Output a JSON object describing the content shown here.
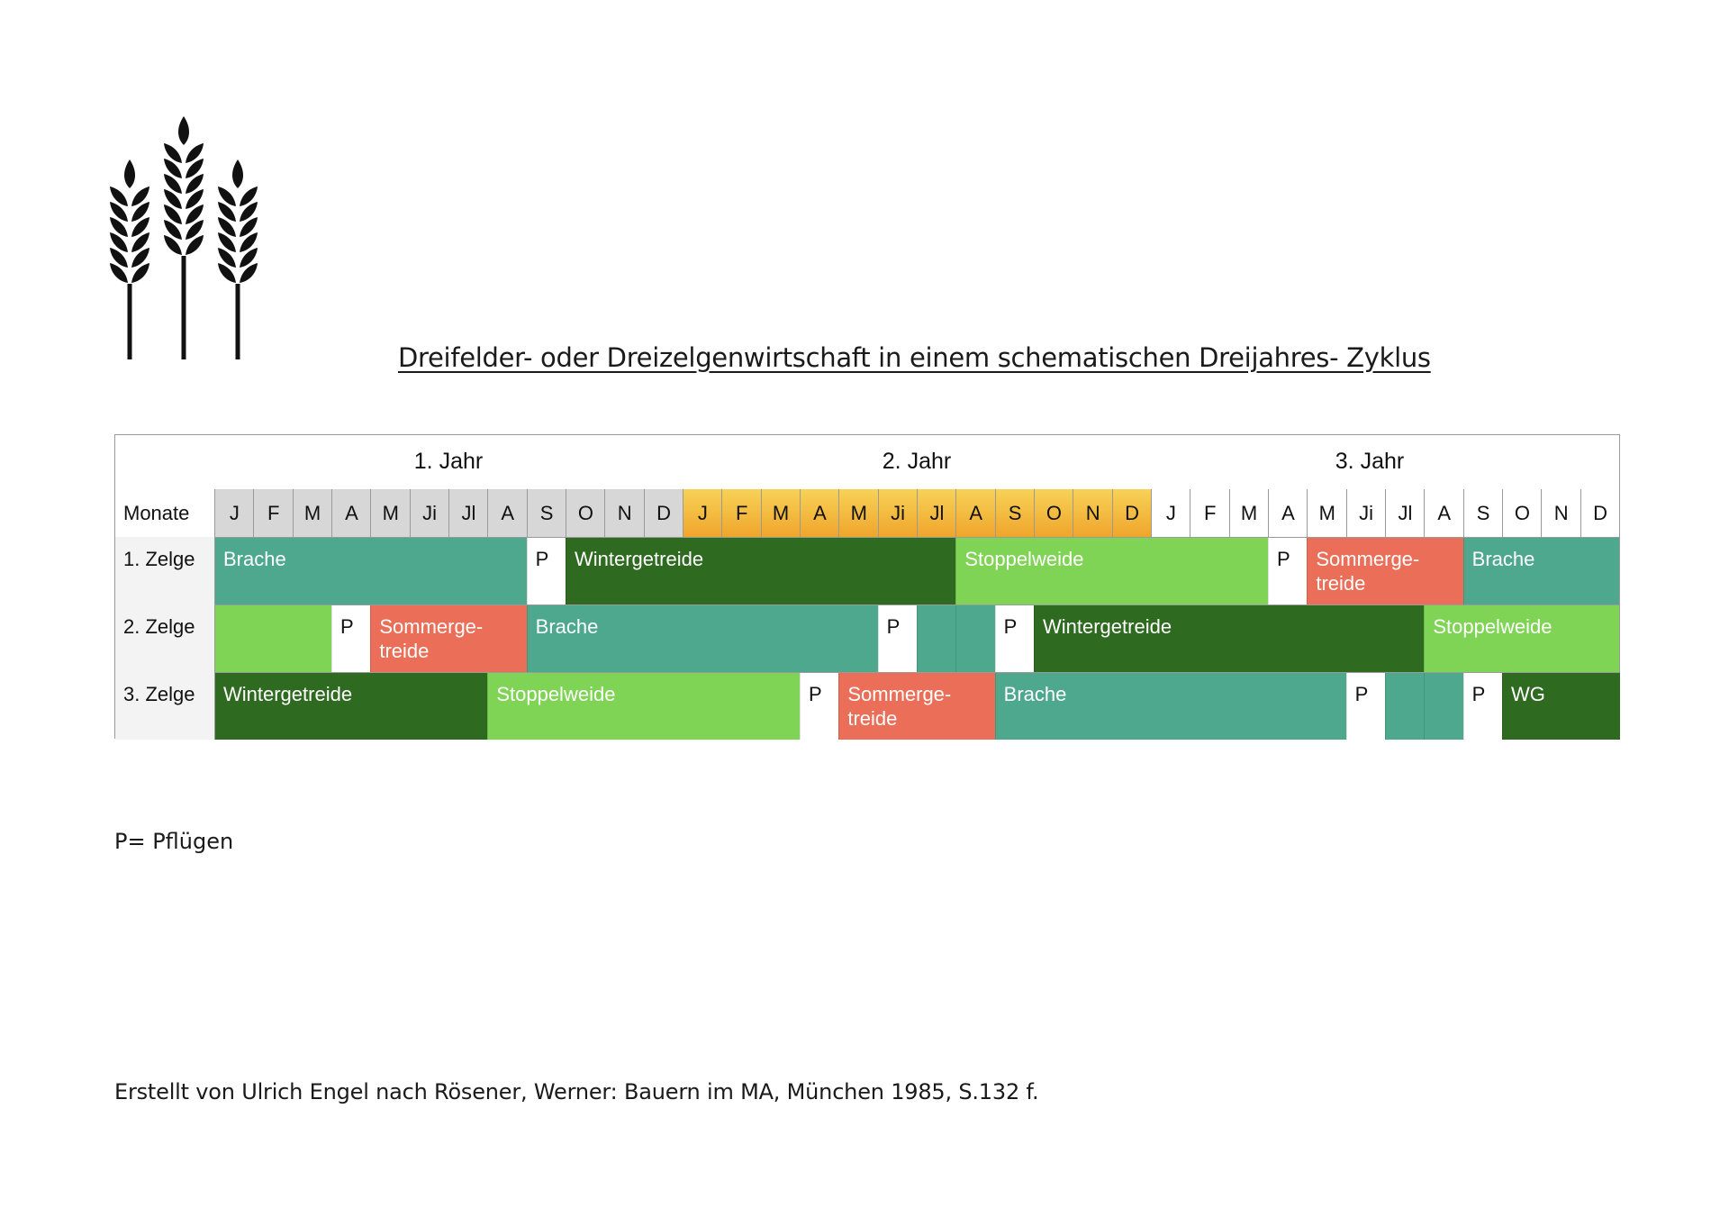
{
  "title": "Dreifelder- oder Dreizelgenwirtschaft in einem schematischen Dreijahres- Zyklus",
  "logo": {
    "icon": "wheat-icon",
    "color": "#111111"
  },
  "years": [
    "1. Jahr",
    "2. Jahr",
    "3. Jahr"
  ],
  "months_header": "Monate",
  "months": [
    "J",
    "F",
    "M",
    "A",
    "M",
    "Ji",
    "Jl",
    "A",
    "S",
    "O",
    "N",
    "D"
  ],
  "month_colors": {
    "year1": "#d7d7d7",
    "year2_top": "#f7d257",
    "year2_bottom": "#f0a52c",
    "year3": "#ffffff"
  },
  "colors": {
    "Brache": "#4ea88e",
    "Wintergetreide": "#2e6b20",
    "Stoppelweide": "#80d455",
    "Sommergetreide": "#eb6e58",
    "Pflügen": "#ffffff"
  },
  "rows": [
    {
      "label": "1. Zelge",
      "segments": [
        {
          "text": "Brache",
          "type": "Brache",
          "start": 0,
          "span": 8
        },
        {
          "text": "P",
          "type": "Pflügen",
          "start": 8,
          "span": 1
        },
        {
          "text": "Wintergetreide",
          "type": "Wintergetreide",
          "start": 9,
          "span": 10
        },
        {
          "text": "Stoppelweide",
          "type": "Stoppelweide",
          "start": 19,
          "span": 8
        },
        {
          "text": "P",
          "type": "Pflügen",
          "start": 27,
          "span": 1
        },
        {
          "text": "Sommerge-\ntreide",
          "type": "Sommergetreide",
          "start": 28,
          "span": 4
        },
        {
          "text": "Brache",
          "type": "Brache",
          "start": 32,
          "span": 4
        }
      ]
    },
    {
      "label": "2. Zelge",
      "segments": [
        {
          "text": "",
          "type": "Stoppelweide",
          "start": 0,
          "span": 3
        },
        {
          "text": "P",
          "type": "Pflügen",
          "start": 3,
          "span": 1
        },
        {
          "text": "Sommerge-\ntreide",
          "type": "Sommergetreide",
          "start": 4,
          "span": 4
        },
        {
          "text": "Brache",
          "type": "Brache",
          "start": 8,
          "span": 9
        },
        {
          "text": "P",
          "type": "Pflügen",
          "start": 17,
          "span": 1
        },
        {
          "text": "",
          "type": "Brache",
          "start": 18,
          "span": 1
        },
        {
          "text": "",
          "type": "Brache",
          "start": 19,
          "span": 1
        },
        {
          "text": "P",
          "type": "Pflügen",
          "start": 20,
          "span": 1
        },
        {
          "text": "Wintergetreide",
          "type": "Wintergetreide",
          "start": 21,
          "span": 10
        },
        {
          "text": "Stoppelweide",
          "type": "Stoppelweide",
          "start": 31,
          "span": 5
        }
      ]
    },
    {
      "label": "3. Zelge",
      "segments": [
        {
          "text": "Wintergetreide",
          "type": "Wintergetreide",
          "start": 0,
          "span": 7
        },
        {
          "text": "Stoppelweide",
          "type": "Stoppelweide",
          "start": 7,
          "span": 8
        },
        {
          "text": "P",
          "type": "Pflügen",
          "start": 15,
          "span": 1
        },
        {
          "text": "Sommerge-\ntreide",
          "type": "Sommergetreide",
          "start": 16,
          "span": 4
        },
        {
          "text": "Brache",
          "type": "Brache",
          "start": 20,
          "span": 9
        },
        {
          "text": "P",
          "type": "Pflügen",
          "start": 29,
          "span": 1
        },
        {
          "text": "",
          "type": "Brache",
          "start": 30,
          "span": 1
        },
        {
          "text": "",
          "type": "Brache",
          "start": 31,
          "span": 1
        },
        {
          "text": "P",
          "type": "Pflügen",
          "start": 32,
          "span": 1
        },
        {
          "text": "WG",
          "type": "Wintergetreide",
          "start": 33,
          "span": 3
        }
      ]
    }
  ],
  "legend": "P= Pflügen",
  "credit": "Erstellt von Ulrich Engel nach Rösener, Werner: Bauern im MA, München 1985, S.132 f."
}
